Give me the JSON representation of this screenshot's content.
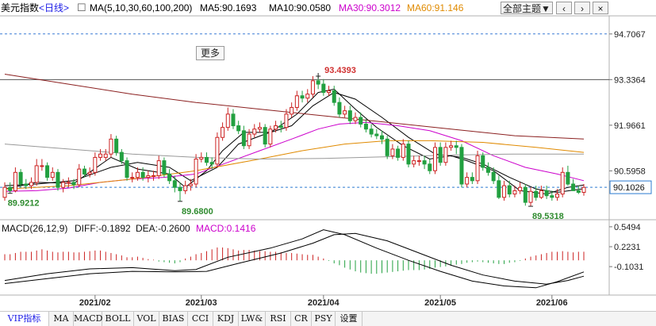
{
  "header": {
    "title": "美元指数",
    "period": "<日线>",
    "ma_label": "MA(5,10,30,60,100,200)",
    "ma5": "MA5:90.1693",
    "ma10": "MA10:90.0580",
    "ma30": "MA30:90.3012",
    "ma60": "MA60:91.146",
    "theme_label": "全部主题▼"
  },
  "more_label": "更多",
  "colors": {
    "up": "#cc2222",
    "down": "#22a040",
    "ma5": "#000000",
    "ma10": "#000000",
    "ma30": "#cc00cc",
    "ma60": "#e08a00",
    "ma100": "#999999",
    "ma200": "#8b2020",
    "high_label": "#d03030",
    "low_label": "#2e8b2e",
    "current_line": "#2b7bd1",
    "current_box": "#2b7bd1",
    "macd_line": "#000000",
    "dea_line": "#000000"
  },
  "icons": {
    "prev": "chevron-left-icon",
    "next": "chevron-right-icon",
    "close": "close-icon"
  },
  "chart_data": {
    "type": "candlestick",
    "title": "美元指数",
    "dates": [
      "2021-01-07",
      "2021-01-08",
      "2021-01-11",
      "2021-01-12",
      "2021-01-13",
      "2021-01-14",
      "2021-01-15",
      "2021-01-18",
      "2021-01-19",
      "2021-01-20",
      "2021-01-21",
      "2021-01-22",
      "2021-01-25",
      "2021-01-26",
      "2021-01-27",
      "2021-01-28",
      "2021-01-29",
      "2021-02-01",
      "2021-02-02",
      "2021-02-03",
      "2021-02-04",
      "2021-02-05",
      "2021-02-08",
      "2021-02-09",
      "2021-02-10",
      "2021-02-11",
      "2021-02-12",
      "2021-02-15",
      "2021-02-16",
      "2021-02-17",
      "2021-02-18",
      "2021-02-19",
      "2021-02-22",
      "2021-02-23",
      "2021-02-24",
      "2021-02-25",
      "2021-02-26",
      "2021-03-01",
      "2021-03-02",
      "2021-03-03",
      "2021-03-04",
      "2021-03-05",
      "2021-03-08",
      "2021-03-09",
      "2021-03-10",
      "2021-03-11",
      "2021-03-12",
      "2021-03-15",
      "2021-03-16",
      "2021-03-17",
      "2021-03-18",
      "2021-03-19",
      "2021-03-22",
      "2021-03-23",
      "2021-03-24",
      "2021-03-25",
      "2021-03-26",
      "2021-03-29",
      "2021-03-30",
      "2021-03-31",
      "2021-04-01",
      "2021-04-02",
      "2021-04-05",
      "2021-04-06",
      "2021-04-07",
      "2021-04-08",
      "2021-04-09",
      "2021-04-12",
      "2021-04-13",
      "2021-04-14",
      "2021-04-15",
      "2021-04-16",
      "2021-04-19",
      "2021-04-20",
      "2021-04-21",
      "2021-04-22",
      "2021-04-23",
      "2021-04-26",
      "2021-04-27",
      "2021-04-28",
      "2021-04-29",
      "2021-04-30",
      "2021-05-03",
      "2021-05-04",
      "2021-05-05",
      "2021-05-06",
      "2021-05-07",
      "2021-05-10",
      "2021-05-11",
      "2021-05-12",
      "2021-05-13",
      "2021-05-14",
      "2021-05-17",
      "2021-05-18",
      "2021-05-19",
      "2021-05-20",
      "2021-05-21",
      "2021-05-24",
      "2021-05-25",
      "2021-05-26",
      "2021-05-27",
      "2021-05-28",
      "2021-05-31",
      "2021-06-01",
      "2021-06-02",
      "2021-06-03",
      "2021-06-04",
      "2021-06-07",
      "2021-06-08",
      "2021-06-09"
    ],
    "open": [
      89.8,
      90.1,
      90.0,
      90.55,
      90.2,
      90.15,
      90.25,
      90.75,
      90.75,
      90.4,
      90.55,
      90.1,
      90.25,
      90.25,
      90.18,
      90.65,
      90.5,
      90.55,
      91.0,
      91.0,
      91.1,
      91.55,
      91.15,
      90.9,
      90.4,
      90.4,
      90.55,
      90.4,
      90.45,
      90.45,
      90.9,
      90.5,
      90.3,
      90.1,
      90.0,
      90.15,
      90.2,
      90.95,
      91.0,
      90.85,
      90.8,
      91.6,
      91.9,
      92.3,
      91.95,
      91.8,
      91.35,
      91.7,
      91.85,
      91.9,
      91.4,
      91.85,
      91.95,
      91.9,
      92.3,
      92.5,
      92.85,
      92.78,
      92.9,
      93.3,
      93.2,
      92.95,
      93.0,
      92.65,
      92.3,
      92.4,
      92.1,
      92.2,
      92.0,
      91.85,
      91.7,
      91.65,
      91.55,
      91.05,
      91.25,
      91.0,
      91.4,
      90.8,
      90.9,
      90.9,
      90.8,
      90.6,
      91.3,
      90.85,
      91.3,
      91.35,
      91.3,
      90.2,
      90.4,
      90.3,
      91.05,
      90.7,
      90.55,
      90.3,
      89.8,
      90.15,
      89.9,
      90.0,
      90.1,
      89.65,
      89.98,
      89.8,
      90.0,
      89.85,
      89.8,
      89.9,
      90.55,
      90.2,
      90.0,
      89.95
    ],
    "close": [
      90.1,
      90.0,
      90.55,
      90.2,
      90.15,
      90.25,
      90.75,
      90.75,
      90.4,
      90.55,
      90.1,
      90.25,
      90.25,
      90.18,
      90.65,
      90.5,
      90.55,
      91.0,
      91.1,
      91.1,
      91.55,
      91.15,
      90.9,
      90.4,
      90.4,
      90.55,
      90.4,
      90.45,
      90.45,
      90.9,
      90.5,
      90.3,
      90.1,
      90.0,
      90.15,
      90.2,
      90.95,
      91.0,
      90.85,
      90.8,
      91.6,
      91.9,
      92.3,
      91.95,
      91.8,
      91.35,
      91.7,
      91.85,
      91.9,
      91.4,
      91.85,
      91.95,
      91.9,
      92.3,
      92.5,
      92.85,
      92.78,
      92.9,
      93.3,
      93.2,
      92.95,
      93.0,
      92.65,
      92.3,
      92.4,
      92.1,
      92.2,
      92.0,
      91.85,
      91.7,
      91.65,
      91.55,
      91.05,
      91.25,
      91.0,
      91.4,
      90.8,
      90.9,
      90.9,
      90.8,
      90.6,
      91.3,
      90.85,
      91.3,
      91.35,
      91.3,
      90.2,
      90.4,
      90.3,
      91.05,
      90.7,
      90.55,
      90.3,
      89.8,
      90.15,
      89.9,
      90.0,
      90.1,
      89.65,
      89.98,
      89.8,
      90.0,
      89.85,
      89.8,
      89.9,
      90.55,
      90.2,
      90.0,
      89.95,
      90.1
    ],
    "high": [
      90.25,
      90.25,
      90.7,
      90.65,
      90.35,
      90.4,
      90.95,
      90.95,
      90.85,
      90.7,
      90.65,
      90.35,
      90.4,
      90.35,
      90.8,
      90.75,
      90.7,
      91.15,
      91.25,
      91.25,
      91.7,
      91.65,
      91.25,
      91.0,
      90.55,
      90.7,
      90.7,
      90.6,
      90.6,
      91.05,
      91.0,
      90.65,
      90.45,
      90.25,
      90.3,
      90.35,
      91.1,
      91.15,
      91.15,
      91.0,
      91.75,
      92.05,
      92.5,
      92.45,
      92.1,
      91.95,
      91.85,
      92.0,
      92.05,
      92.0,
      91.95,
      92.1,
      92.1,
      92.45,
      92.65,
      93.0,
      93.0,
      93.05,
      93.44,
      93.45,
      93.35,
      93.15,
      93.15,
      92.8,
      92.55,
      92.55,
      92.35,
      92.35,
      92.15,
      92.0,
      91.85,
      91.8,
      91.65,
      91.4,
      91.35,
      91.55,
      91.5,
      91.05,
      91.05,
      91.05,
      90.95,
      91.45,
      91.45,
      91.45,
      91.5,
      91.5,
      91.4,
      90.55,
      90.55,
      91.2,
      91.15,
      90.85,
      90.7,
      90.45,
      90.3,
      90.3,
      90.15,
      90.25,
      90.2,
      90.1,
      90.15,
      90.15,
      90.15,
      90.0,
      90.05,
      90.7,
      90.75,
      90.35,
      90.15,
      90.2
    ],
    "low": [
      89.7,
      89.92,
      89.95,
      90.1,
      90.05,
      90.05,
      90.15,
      90.6,
      90.3,
      90.3,
      90.0,
      89.95,
      90.1,
      90.05,
      90.1,
      90.4,
      90.4,
      90.45,
      90.9,
      90.9,
      91.0,
      91.05,
      90.8,
      90.3,
      90.25,
      90.3,
      90.3,
      90.25,
      90.3,
      90.35,
      90.4,
      90.2,
      89.95,
      89.68,
      89.9,
      90.0,
      90.1,
      90.85,
      90.75,
      90.65,
      90.7,
      91.5,
      91.8,
      91.85,
      91.7,
      91.25,
      91.25,
      91.6,
      91.75,
      91.3,
      91.3,
      91.75,
      91.75,
      91.8,
      92.2,
      92.4,
      92.65,
      92.65,
      92.8,
      93.05,
      92.85,
      92.85,
      92.55,
      92.2,
      92.2,
      92.0,
      92.0,
      91.9,
      91.75,
      91.6,
      91.55,
      91.4,
      90.95,
      90.95,
      90.9,
      90.9,
      90.7,
      90.7,
      90.75,
      90.65,
      90.5,
      90.5,
      90.75,
      90.75,
      91.2,
      91.1,
      90.1,
      90.1,
      90.2,
      90.2,
      90.6,
      90.45,
      90.2,
      89.75,
      89.7,
      89.8,
      89.8,
      89.9,
      89.55,
      89.53,
      89.7,
      89.75,
      89.75,
      89.7,
      89.7,
      89.8,
      90.15,
      90.0,
      89.9,
      89.85
    ],
    "ma_lines": {
      "MA5": [
        [
          0,
          90.05
        ],
        [
          6,
          90.25
        ],
        [
          13,
          90.22
        ],
        [
          20,
          91.0
        ],
        [
          25,
          90.65
        ],
        [
          31,
          90.5
        ],
        [
          34,
          90.1
        ],
        [
          38,
          90.6
        ],
        [
          41,
          91.2
        ],
        [
          45,
          91.75
        ],
        [
          50,
          91.75
        ],
        [
          55,
          92.3
        ],
        [
          59,
          92.95
        ],
        [
          62,
          93.05
        ],
        [
          66,
          92.45
        ],
        [
          70,
          91.9
        ],
        [
          75,
          91.35
        ],
        [
          80,
          90.95
        ],
        [
          84,
          91.05
        ],
        [
          87,
          90.9
        ],
        [
          92,
          90.6
        ],
        [
          97,
          90.0
        ],
        [
          102,
          89.9
        ],
        [
          106,
          90.1
        ],
        [
          109,
          90.17
        ]
      ],
      "MA10": [
        [
          0,
          90.15
        ],
        [
          6,
          90.2
        ],
        [
          13,
          90.3
        ],
        [
          20,
          90.7
        ],
        [
          25,
          90.85
        ],
        [
          31,
          90.7
        ],
        [
          35,
          90.3
        ],
        [
          40,
          90.7
        ],
        [
          44,
          91.4
        ],
        [
          49,
          91.7
        ],
        [
          54,
          91.95
        ],
        [
          58,
          92.55
        ],
        [
          62,
          92.95
        ],
        [
          66,
          92.75
        ],
        [
          71,
          92.2
        ],
        [
          76,
          91.6
        ],
        [
          81,
          91.1
        ],
        [
          86,
          91.0
        ],
        [
          90,
          90.8
        ],
        [
          95,
          90.4
        ],
        [
          100,
          90.05
        ],
        [
          104,
          89.95
        ],
        [
          109,
          90.06
        ]
      ],
      "MA30": [
        [
          0,
          89.98
        ],
        [
          6,
          90.0
        ],
        [
          12,
          90.08
        ],
        [
          18,
          90.25
        ],
        [
          24,
          90.35
        ],
        [
          30,
          90.4
        ],
        [
          36,
          90.5
        ],
        [
          42,
          90.85
        ],
        [
          48,
          91.2
        ],
        [
          54,
          91.55
        ],
        [
          59,
          91.85
        ],
        [
          63,
          92.0
        ],
        [
          68,
          92.05
        ],
        [
          74,
          91.95
        ],
        [
          80,
          91.8
        ],
        [
          86,
          91.5
        ],
        [
          92,
          91.05
        ],
        [
          98,
          90.7
        ],
        [
          104,
          90.5
        ],
        [
          109,
          90.3
        ]
      ],
      "MA60": [
        [
          0,
          90.05
        ],
        [
          12,
          90.15
        ],
        [
          24,
          90.35
        ],
        [
          36,
          90.6
        ],
        [
          48,
          90.95
        ],
        [
          56,
          91.2
        ],
        [
          64,
          91.4
        ],
        [
          72,
          91.5
        ],
        [
          80,
          91.5
        ],
        [
          90,
          91.45
        ],
        [
          100,
          91.3
        ],
        [
          109,
          91.15
        ]
      ],
      "MA100": [
        [
          0,
          91.4
        ],
        [
          12,
          91.25
        ],
        [
          24,
          91.1
        ],
        [
          36,
          91.0
        ],
        [
          48,
          90.95
        ],
        [
          60,
          90.97
        ],
        [
          72,
          91.02
        ],
        [
          84,
          91.07
        ],
        [
          96,
          91.1
        ],
        [
          109,
          91.1
        ]
      ],
      "MA200": [
        [
          0,
          93.5
        ],
        [
          12,
          93.2
        ],
        [
          24,
          92.9
        ],
        [
          36,
          92.65
        ],
        [
          48,
          92.45
        ],
        [
          60,
          92.25
        ],
        [
          72,
          92.05
        ],
        [
          84,
          91.85
        ],
        [
          96,
          91.65
        ],
        [
          109,
          91.55
        ]
      ]
    },
    "y_ticks": [
      94.7067,
      93.3364,
      91.9661,
      90.5958
    ],
    "y_range": [
      89.2,
      95.25
    ],
    "current_price": "90.1026",
    "annotations": [
      {
        "label": "93.4393",
        "index": 59,
        "value": 93.4393
      },
      {
        "label": "89.9212",
        "index": 1,
        "value": 89.9212
      },
      {
        "label": "89.6800",
        "index": 33,
        "value": 89.68
      },
      {
        "label": "89.5318",
        "index": 99,
        "value": 89.5318
      }
    ],
    "x_ticks": [
      {
        "label": "2021/02",
        "index": 17
      },
      {
        "label": "2021/03",
        "index": 37
      },
      {
        "label": "2021/04",
        "index": 60
      },
      {
        "label": "2021/05",
        "index": 82
      },
      {
        "label": "2021/06",
        "index": 103
      }
    ],
    "macd": {
      "title": "MACD(26,12,9)",
      "diff_label": "DIFF:-0.1892",
      "dea_label": "DEA:-0.2600",
      "macd_label": "MACD:0.1416",
      "y_ticks": [
        0.5494,
        0.2231,
        -0.1031
      ],
      "y_range": [
        -0.53,
        0.6
      ],
      "diff": [
        [
          0,
          -0.33
        ],
        [
          8,
          -0.22
        ],
        [
          16,
          -0.14
        ],
        [
          24,
          -0.12
        ],
        [
          32,
          -0.17
        ],
        [
          36,
          -0.15
        ],
        [
          42,
          0.05
        ],
        [
          50,
          0.2
        ],
        [
          56,
          0.35
        ],
        [
          60,
          0.5
        ],
        [
          64,
          0.42
        ],
        [
          70,
          0.2
        ],
        [
          76,
          0.0
        ],
        [
          82,
          -0.18
        ],
        [
          88,
          -0.34
        ],
        [
          94,
          -0.42
        ],
        [
          100,
          -0.45
        ],
        [
          104,
          -0.35
        ],
        [
          109,
          -0.19
        ]
      ],
      "dea": [
        [
          0,
          -0.38
        ],
        [
          8,
          -0.3
        ],
        [
          16,
          -0.22
        ],
        [
          24,
          -0.18
        ],
        [
          32,
          -0.19
        ],
        [
          38,
          -0.18
        ],
        [
          44,
          -0.05
        ],
        [
          52,
          0.12
        ],
        [
          58,
          0.28
        ],
        [
          62,
          0.42
        ],
        [
          66,
          0.44
        ],
        [
          72,
          0.32
        ],
        [
          78,
          0.12
        ],
        [
          84,
          -0.08
        ],
        [
          90,
          -0.24
        ],
        [
          96,
          -0.34
        ],
        [
          102,
          -0.39
        ],
        [
          106,
          -0.33
        ],
        [
          109,
          -0.26
        ]
      ],
      "hist": [
        0.1,
        0.1,
        0.12,
        0.14,
        0.14,
        0.14,
        0.16,
        0.18,
        0.16,
        0.14,
        0.13,
        0.14,
        0.14,
        0.13,
        0.13,
        0.14,
        0.15,
        0.16,
        0.16,
        0.14,
        0.12,
        0.1,
        0.08,
        0.05,
        0.05,
        0.06,
        0.04,
        0.02,
        0.01,
        -0.02,
        -0.03,
        -0.04,
        -0.05,
        -0.03,
        0.03,
        0.06,
        0.1,
        0.12,
        0.15,
        0.18,
        0.21,
        0.21,
        0.2,
        0.18,
        0.16,
        0.17,
        0.17,
        0.16,
        0.15,
        0.15,
        0.14,
        0.14,
        0.13,
        0.12,
        0.12,
        0.11,
        0.1,
        0.09,
        0.09,
        0.06,
        0.03,
        -0.01,
        -0.05,
        -0.08,
        -0.12,
        -0.15,
        -0.18,
        -0.2,
        -0.21,
        -0.22,
        -0.22,
        -0.21,
        -0.2,
        -0.19,
        -0.18,
        -0.17,
        -0.16,
        -0.16,
        -0.16,
        -0.15,
        -0.14,
        -0.12,
        -0.11,
        -0.1,
        -0.08,
        -0.07,
        -0.06,
        -0.04,
        -0.03,
        -0.02,
        -0.03,
        -0.04,
        -0.05,
        -0.06,
        -0.06,
        -0.04,
        -0.03,
        -0.01,
        0.03,
        0.06,
        0.08,
        0.1,
        0.12,
        0.14,
        0.14,
        0.15,
        0.14,
        0.13,
        0.14,
        0.14
      ]
    }
  },
  "tabs": [
    "VIP指标",
    "MA",
    "MACD",
    "BOLL",
    "VOL",
    "BIAS",
    "CCI",
    "KDJ",
    "LW&",
    "RSI",
    "CR",
    "PSY",
    "设置"
  ]
}
